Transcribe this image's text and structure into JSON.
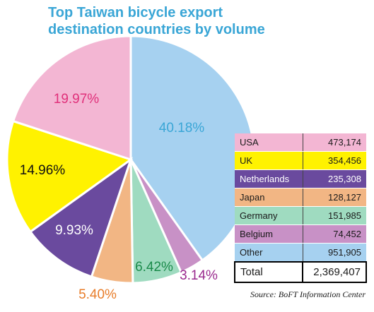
{
  "title_lines": [
    "Top Taiwan bicycle export",
    "destination countries by volume"
  ],
  "source_note": "Source: BoFT Information Center",
  "chart_data": {
    "type": "pie",
    "title": "Top Taiwan bicycle export destination countries by volume",
    "slices": [
      {
        "label": "Other",
        "percent": 40.18,
        "percent_label": "40.18%",
        "color": "#a6d1f0",
        "label_color": "#3aa6d6"
      },
      {
        "label": "Belgium",
        "percent": 3.14,
        "percent_label": "3.14%",
        "color": "#c891c6",
        "label_color": "#9a2a8e"
      },
      {
        "label": "Germany",
        "percent": 6.42,
        "percent_label": "6.42%",
        "color": "#9fdbc0",
        "label_color": "#1a8a4a"
      },
      {
        "label": "Japan",
        "percent": 5.4,
        "percent_label": "5.40%",
        "color": "#f2b684",
        "label_color": "#e87d2a"
      },
      {
        "label": "Netherlands",
        "percent": 9.93,
        "percent_label": "9.93%",
        "color": "#6a4a9e",
        "label_color": "#ffffff"
      },
      {
        "label": "UK",
        "percent": 14.96,
        "percent_label": "14.96%",
        "color": "#fff200",
        "label_color": "#111111"
      },
      {
        "label": "USA",
        "percent": 19.97,
        "percent_label": "19.97%",
        "color": "#f3b6d3",
        "label_color": "#e0307a"
      }
    ]
  },
  "table": {
    "rows": [
      {
        "country": "USA",
        "volume": "473,174",
        "color": "#f3b6d3",
        "text_color": "#1a1a1a"
      },
      {
        "country": "UK",
        "volume": "354,456",
        "color": "#fff200",
        "text_color": "#1a1a1a"
      },
      {
        "country": "Netherlands",
        "volume": "235,308",
        "color": "#6a4a9e",
        "text_color": "#ffffff"
      },
      {
        "country": "Japan",
        "volume": "128,127",
        "color": "#f2b684",
        "text_color": "#1a1a1a"
      },
      {
        "country": "Germany",
        "volume": "151,985",
        "color": "#9fdbc0",
        "text_color": "#1a1a1a"
      },
      {
        "country": "Belgium",
        "volume": "74,452",
        "color": "#c891c6",
        "text_color": "#1a1a1a"
      },
      {
        "country": "Other",
        "volume": "951,905",
        "color": "#a6d1f0",
        "text_color": "#1a1a1a"
      }
    ],
    "total_label": "Total",
    "total_value": "2,369,407"
  }
}
